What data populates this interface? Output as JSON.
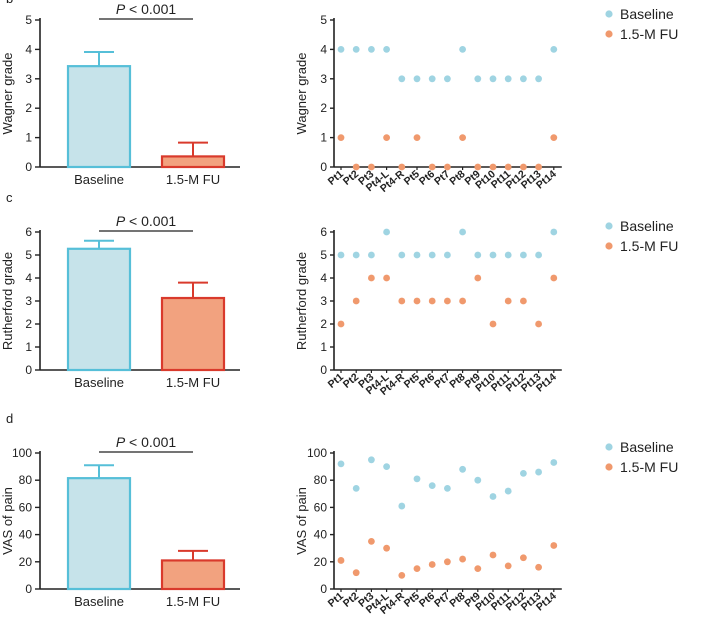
{
  "panel_labels": [
    "b",
    "c",
    "d"
  ],
  "colors": {
    "baseline": "#9fd4e2",
    "followup": "#f0996d",
    "bar_base_fill": "#c6e3ea",
    "bar_base_edge": "#56bfd8",
    "bar_fu_fill": "#f2a27f",
    "bar_fu_edge": "#d93a2c"
  },
  "chart_data": [
    {
      "type": "bar",
      "title": "",
      "ylabel": "Wagner grade",
      "categories": [
        "Baseline",
        "1.5-M FU"
      ],
      "values": [
        3.43,
        0.36
      ],
      "errors": [
        0.48,
        0.47
      ],
      "ylim": [
        0,
        5
      ],
      "yticks": [
        "0",
        "1",
        "2",
        "3",
        "4",
        "5"
      ],
      "annotation": "P < 0.001"
    },
    {
      "type": "scatter",
      "ylabel": "Wagner grade",
      "categories": [
        "Pt1",
        "Pt2",
        "Pt3",
        "Pt4-L",
        "Pt4-R",
        "Pt5",
        "Pt6",
        "Pt7",
        "Pt8",
        "Pt9",
        "Pt10",
        "Pt11",
        "Pt12",
        "Pt13",
        "Pt14"
      ],
      "ylim": [
        0,
        5
      ],
      "yticks": [
        "0",
        "1",
        "2",
        "3",
        "4",
        "5"
      ],
      "series": [
        {
          "name": "Baseline",
          "values": [
            4,
            4,
            4,
            4,
            3,
            3,
            3,
            3,
            4,
            3,
            3,
            3,
            3,
            3,
            4
          ]
        },
        {
          "name": "1.5-M FU",
          "values": [
            1,
            0,
            0,
            1,
            0,
            1,
            0,
            0,
            1,
            0,
            0,
            0,
            0,
            0,
            1
          ]
        }
      ]
    },
    {
      "type": "bar",
      "ylabel": "Rutherford grade",
      "categories": [
        "Baseline",
        "1.5-M FU"
      ],
      "values": [
        5.27,
        3.13
      ],
      "errors": [
        0.35,
        0.67
      ],
      "ylim": [
        0,
        6
      ],
      "yticks": [
        "0",
        "1",
        "2",
        "3",
        "4",
        "5",
        "6"
      ],
      "annotation": "P < 0.001"
    },
    {
      "type": "scatter",
      "ylabel": "Rutherford grade",
      "categories": [
        "Pt1",
        "Pt2",
        "Pt3",
        "Pt4-L",
        "Pt4-R",
        "Pt5",
        "Pt6",
        "Pt7",
        "Pt8",
        "Pt9",
        "Pt10",
        "Pt11",
        "Pt12",
        "Pt13",
        "Pt14"
      ],
      "ylim": [
        0,
        6
      ],
      "yticks": [
        "0",
        "1",
        "2",
        "3",
        "4",
        "5",
        "6"
      ],
      "series": [
        {
          "name": "Baseline",
          "values": [
            5,
            5,
            5,
            6,
            5,
            5,
            5,
            5,
            6,
            5,
            5,
            5,
            5,
            5,
            6
          ]
        },
        {
          "name": "1.5-M FU",
          "values": [
            2,
            3,
            4,
            4,
            3,
            3,
            3,
            3,
            3,
            4,
            2,
            3,
            3,
            2,
            4
          ]
        }
      ]
    },
    {
      "type": "bar",
      "ylabel": "VAS of pain",
      "categories": [
        "Baseline",
        "1.5-M FU"
      ],
      "values": [
        81.5,
        21.0
      ],
      "errors": [
        9.5,
        7.0
      ],
      "ylim": [
        0,
        100
      ],
      "yticks": [
        "0",
        "20",
        "40",
        "60",
        "80",
        "100"
      ],
      "annotation": "P < 0.001"
    },
    {
      "type": "scatter",
      "ylabel": "VAS of pain",
      "categories": [
        "Pt1",
        "Pt2",
        "Pt3",
        "Pt4-L",
        "Pt4-R",
        "Pt5",
        "Pt6",
        "Pt7",
        "Pt8",
        "Pt9",
        "Pt10",
        "Pt11",
        "Pt12",
        "Pt13",
        "Pt14"
      ],
      "ylim": [
        0,
        100
      ],
      "yticks": [
        "0",
        "20",
        "40",
        "60",
        "80",
        "100"
      ],
      "series": [
        {
          "name": "Baseline",
          "values": [
            92,
            74,
            95,
            90,
            61,
            81,
            76,
            74,
            88,
            80,
            68,
            72,
            85,
            86,
            93
          ]
        },
        {
          "name": "1.5-M FU",
          "values": [
            21,
            12,
            35,
            30,
            10,
            15,
            18,
            20,
            22,
            15,
            25,
            17,
            23,
            16,
            32
          ]
        }
      ]
    }
  ]
}
